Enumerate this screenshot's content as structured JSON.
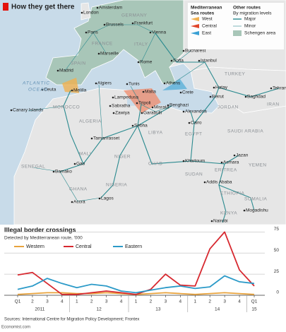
{
  "map": {
    "title": "How they get there",
    "legend": {
      "med_title": [
        "Mediterranean",
        "Sea routes"
      ],
      "med_routes": [
        "West",
        "Central",
        "East"
      ],
      "other_title": "Other routes",
      "other_sub": "By migration levels",
      "other_routes": [
        "Major",
        "Minor",
        "Schengen area"
      ]
    },
    "cities": [
      "London",
      "Amsterdam",
      "Brussels",
      "Frankfurt",
      "Paris",
      "Vienna",
      "Marseille",
      "Rome",
      "Sofia",
      "Bucharest",
      "Istanbul",
      "Madrid",
      "Ceuta",
      "Melilla",
      "Algiers",
      "Tunis",
      "Lampedusa",
      "Malta",
      "Tripoli",
      "Athens",
      "Crete",
      "Beirut",
      "Hatay",
      "Baghdad",
      "Tehran",
      "Canary Islands",
      "Sabratha",
      "Zawiya",
      "Garabulli",
      "Misrata",
      "Benghazi",
      "Alexandria",
      "Cairo",
      "Sebha",
      "Tamanrasset",
      "Gao",
      "Khartoum",
      "Jazan",
      "Asmara",
      "Bamako",
      "Addis Ababa",
      "Accra",
      "Lagos",
      "Mogadishu",
      "Nairobi"
    ],
    "countries": [
      "GERMANY",
      "FRANCE",
      "ITALY",
      "TURKEY",
      "SPAIN",
      "MOROCCO",
      "ALGERIA",
      "LIBYA",
      "EGYPT",
      "JORDAN",
      "IRAN",
      "SAUDI ARABIA",
      "MALI",
      "NIGER",
      "CHAD",
      "SUDAN",
      "ERITREA",
      "YEMEN",
      "SENEGAL",
      "GHANA",
      "NIGERIA",
      "ETHIOPIA",
      "SOMALIA",
      "KENYA"
    ],
    "seas": [
      "ATLANTIC",
      "OCEAN"
    ]
  },
  "chart_data": {
    "type": "line",
    "title": "Illegal border crossings",
    "subtitle": "Detected by Mediterranean route, '000",
    "categories": [
      "Q1",
      "2",
      "3",
      "4",
      "1",
      "2",
      "3",
      "4",
      "1",
      "2",
      "3",
      "4",
      "1",
      "2",
      "3",
      "4",
      "Q1"
    ],
    "year_labels": [
      "2011",
      "12",
      "13",
      "14",
      "15"
    ],
    "series": [
      {
        "name": "Western",
        "color": "#e8a33d",
        "values": [
          1,
          2,
          3,
          3,
          2,
          2,
          3,
          2,
          1,
          2,
          3,
          2,
          1,
          2,
          3,
          2,
          1
        ]
      },
      {
        "name": "Central",
        "color": "#d7282f",
        "values": [
          24,
          27,
          14,
          1,
          1,
          3,
          5,
          3,
          1,
          7,
          25,
          12,
          11,
          55,
          75,
          30,
          11
        ]
      },
      {
        "name": "Eastern",
        "color": "#2b9ac8",
        "values": [
          7,
          11,
          20,
          14,
          9,
          13,
          11,
          5,
          3,
          6,
          9,
          11,
          8,
          10,
          23,
          16,
          14
        ]
      }
    ],
    "ylim": [
      0,
      77
    ],
    "yticks": [
      0,
      25,
      50,
      75
    ],
    "grid": true
  },
  "source": "Sources: International Centre for Migration Policy Development; Frontex",
  "credit": "Economist.com"
}
